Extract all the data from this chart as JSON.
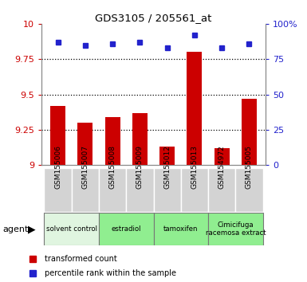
{
  "title": "GDS3105 / 205561_at",
  "samples": [
    "GSM155006",
    "GSM155007",
    "GSM155008",
    "GSM155009",
    "GSM155012",
    "GSM155013",
    "GSM154972",
    "GSM155005"
  ],
  "bar_values": [
    9.42,
    9.3,
    9.34,
    9.37,
    9.13,
    9.8,
    9.12,
    9.47
  ],
  "dot_values": [
    87,
    85,
    86,
    87,
    83,
    92,
    83,
    86
  ],
  "ylim_left": [
    9.0,
    10.0
  ],
  "ylim_right": [
    0,
    100
  ],
  "yticks_left": [
    9.0,
    9.25,
    9.5,
    9.75,
    10.0
  ],
  "ytick_labels_left": [
    "9",
    "9.25",
    "9.5",
    "9.75",
    "10"
  ],
  "yticks_right": [
    0,
    25,
    50,
    75,
    100
  ],
  "ytick_labels_right": [
    "0",
    "25",
    "50",
    "75",
    "100%"
  ],
  "bar_color": "#cc0000",
  "dot_color": "#2222cc",
  "groups": [
    {
      "label": "solvent control",
      "indices": [
        0,
        1
      ],
      "color": "#e0f5e0"
    },
    {
      "label": "estradiol",
      "indices": [
        2,
        3
      ],
      "color": "#90ee90"
    },
    {
      "label": "tamoxifen",
      "indices": [
        4,
        5
      ],
      "color": "#90ee90"
    },
    {
      "label": "Cimicifuga\nracemosa extract",
      "indices": [
        6,
        7
      ],
      "color": "#90ee90"
    }
  ],
  "legend_bar_label": "transformed count",
  "legend_dot_label": "percentile rank within the sample",
  "agent_label": "agent"
}
